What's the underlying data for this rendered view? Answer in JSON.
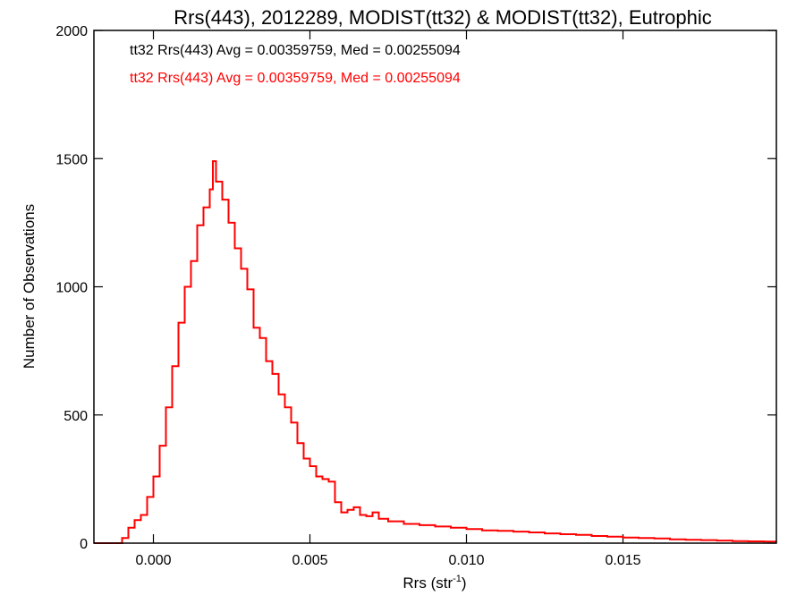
{
  "chart_data": {
    "type": "line",
    "title": "Rrs(443), 2012289, MODIST(tt32) & MODIST(tt32), Eutrophic",
    "xlabel_main": "Rrs (str",
    "xlabel_sup": "-1",
    "xlabel_close": ")",
    "ylabel": "Number of Observations",
    "xlim": [
      -0.0019,
      0.0199
    ],
    "ylim": [
      0,
      2000
    ],
    "x_ticks": [
      0.0,
      0.005,
      0.01,
      0.015
    ],
    "x_tick_labels": [
      "0.000",
      "0.005",
      "0.010",
      "0.015"
    ],
    "y_ticks": [
      0,
      500,
      1000,
      1500,
      2000
    ],
    "y_tick_labels": [
      "0",
      "500",
      "1000",
      "1500",
      "2000"
    ],
    "grid": false,
    "annotations": [
      {
        "text": "tt32 Rrs(443) Avg = 0.00359759, Med = 0.00255094",
        "color": "#000000"
      },
      {
        "text": "tt32 Rrs(443) Avg = 0.00359759, Med = 0.00255094",
        "color": "#ff0000"
      }
    ],
    "series": [
      {
        "color": "#ff0000",
        "points": [
          [
            -0.0019,
            0
          ],
          [
            -0.0011,
            0
          ],
          [
            -0.001,
            20
          ],
          [
            -0.0008,
            60
          ],
          [
            -0.0006,
            90
          ],
          [
            -0.0004,
            110
          ],
          [
            -0.0002,
            180
          ],
          [
            0.0,
            260
          ],
          [
            0.0002,
            380
          ],
          [
            0.0004,
            530
          ],
          [
            0.0006,
            690
          ],
          [
            0.0008,
            860
          ],
          [
            0.001,
            1000
          ],
          [
            0.0012,
            1100
          ],
          [
            0.0014,
            1240
          ],
          [
            0.0016,
            1310
          ],
          [
            0.0018,
            1380
          ],
          [
            0.0019,
            1490
          ],
          [
            0.002,
            1410
          ],
          [
            0.0022,
            1340
          ],
          [
            0.0024,
            1250
          ],
          [
            0.0026,
            1150
          ],
          [
            0.0028,
            1070
          ],
          [
            0.003,
            990
          ],
          [
            0.0032,
            840
          ],
          [
            0.0034,
            800
          ],
          [
            0.0036,
            710
          ],
          [
            0.0038,
            660
          ],
          [
            0.004,
            580
          ],
          [
            0.0042,
            530
          ],
          [
            0.0044,
            470
          ],
          [
            0.0046,
            390
          ],
          [
            0.0048,
            330
          ],
          [
            0.005,
            300
          ],
          [
            0.0052,
            260
          ],
          [
            0.0054,
            250
          ],
          [
            0.0056,
            240
          ],
          [
            0.0058,
            160
          ],
          [
            0.006,
            120
          ],
          [
            0.0062,
            130
          ],
          [
            0.0064,
            140
          ],
          [
            0.0066,
            110
          ],
          [
            0.0068,
            105
          ],
          [
            0.007,
            120
          ],
          [
            0.0072,
            95
          ],
          [
            0.0075,
            85
          ],
          [
            0.008,
            75
          ],
          [
            0.0085,
            70
          ],
          [
            0.009,
            65
          ],
          [
            0.0095,
            60
          ],
          [
            0.01,
            55
          ],
          [
            0.0105,
            50
          ],
          [
            0.011,
            48
          ],
          [
            0.0115,
            45
          ],
          [
            0.012,
            42
          ],
          [
            0.0125,
            38
          ],
          [
            0.013,
            35
          ],
          [
            0.0135,
            32
          ],
          [
            0.014,
            28
          ],
          [
            0.0145,
            25
          ],
          [
            0.015,
            22
          ],
          [
            0.0155,
            20
          ],
          [
            0.016,
            18
          ],
          [
            0.0165,
            15
          ],
          [
            0.017,
            13
          ],
          [
            0.0175,
            12
          ],
          [
            0.018,
            10
          ],
          [
            0.0185,
            8
          ],
          [
            0.019,
            7
          ],
          [
            0.0195,
            6
          ],
          [
            0.0199,
            6
          ]
        ]
      }
    ]
  }
}
